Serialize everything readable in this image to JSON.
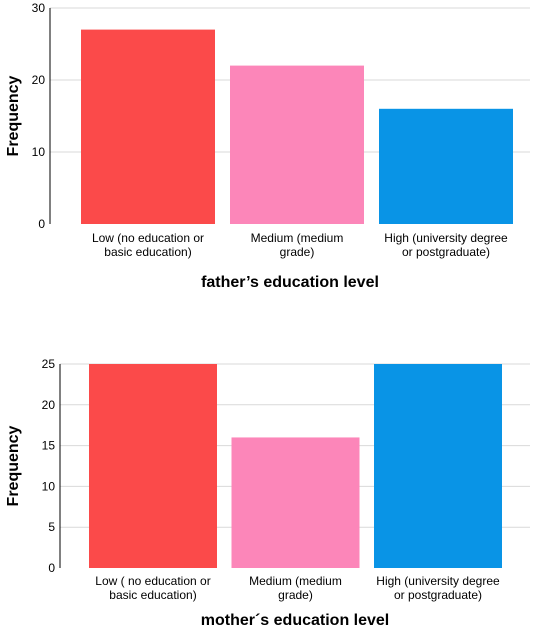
{
  "chart_data": [
    {
      "type": "bar",
      "categories": [
        [
          "Low (no education or",
          "basic education)"
        ],
        [
          "Medium (medium",
          "grade)"
        ],
        [
          "High (university degree",
          "or postgraduate)"
        ]
      ],
      "values": [
        27,
        22,
        16
      ],
      "colors": [
        "#fb4a4a",
        "#fc86b9",
        "#0994e6"
      ],
      "xlabel": "father’s education level",
      "ylabel": "Frequency",
      "ylim": [
        0,
        30
      ],
      "yticks": [
        0,
        10,
        20,
        30
      ],
      "grid": true
    },
    {
      "type": "bar",
      "categories": [
        [
          "Low ( no education or",
          "basic education)"
        ],
        [
          "Medium (medium",
          "grade)"
        ],
        [
          "High (university degree",
          "or postgraduate)"
        ]
      ],
      "values": [
        25,
        16,
        25
      ],
      "colors": [
        "#fb4a4a",
        "#fc86b9",
        "#0994e6"
      ],
      "xlabel": "mother´s education level",
      "ylabel": "Frequency",
      "ylim": [
        0,
        25
      ],
      "yticks": [
        0,
        5,
        10,
        15,
        20,
        25
      ],
      "grid": true
    }
  ]
}
